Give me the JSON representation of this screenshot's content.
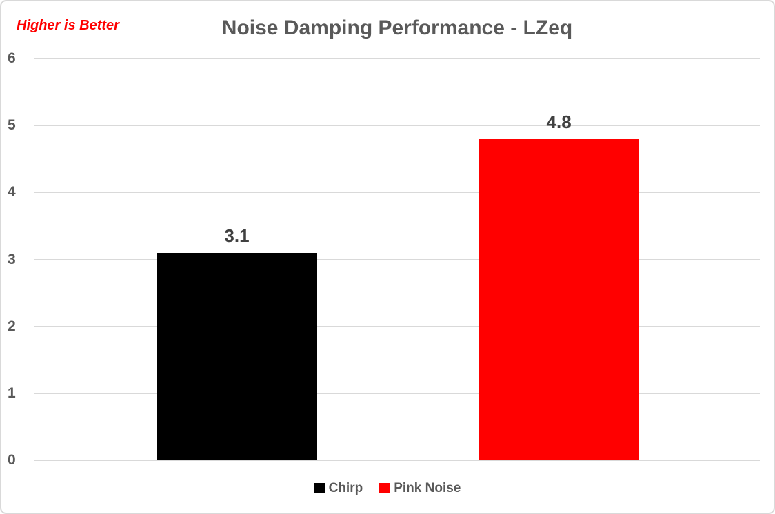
{
  "chart_data": {
    "type": "bar",
    "title": "Noise Damping Performance - LZeq",
    "title_color": "#595959",
    "annotation": {
      "text": "Higher is Better",
      "color": "#ff0000"
    },
    "categories": [
      "Chirp",
      "Pink Noise"
    ],
    "series": [
      {
        "name": "Chirp",
        "value": 3.1,
        "color": "#000000"
      },
      {
        "name": "Pink Noise",
        "value": 4.8,
        "color": "#ff0000"
      }
    ],
    "data_labels": [
      "3.1",
      "4.8"
    ],
    "xlabel": "",
    "ylabel": "",
    "ylim": [
      0,
      6
    ],
    "yticks": [
      0,
      1,
      2,
      3,
      4,
      5,
      6
    ],
    "grid": true,
    "gridline_color": "#d9d9d9",
    "axis_label_color": "#595959",
    "data_label_color": "#404040",
    "legend_position": "bottom",
    "legend": [
      {
        "label": "Chirp",
        "color": "#000000"
      },
      {
        "label": "Pink Noise",
        "color": "#ff0000"
      }
    ]
  }
}
